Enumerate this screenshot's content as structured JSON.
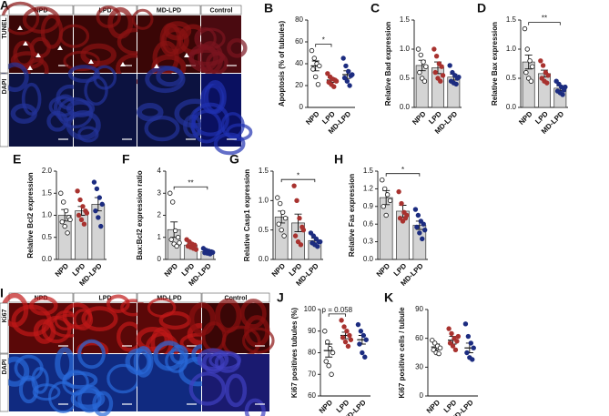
{
  "image_panels": [
    {
      "panel": "A",
      "columns": [
        "NPD",
        "LPD",
        "MD-LPD",
        "Control"
      ],
      "rows": [
        "TUNEL",
        "DAPI"
      ]
    },
    {
      "panel": "I",
      "columns": [
        "NPD",
        "LPD",
        "MD-LPD",
        "Control"
      ],
      "rows": [
        "Ki67",
        "DAPI"
      ]
    }
  ],
  "chart_data": [
    {
      "type": "dot",
      "panel": "B",
      "ylabel": "Apoptosis (% of tubules)",
      "categories": [
        "NPD",
        "LPD",
        "MD-LPD"
      ],
      "colors": [
        "#ffffff",
        "#a8322f",
        "#1c2c80"
      ],
      "values": [
        38,
        25,
        30
      ],
      "errors": [
        4.5,
        2,
        3.5
      ],
      "points": [
        [
          52,
          45,
          40,
          38,
          35,
          28,
          21
        ],
        [
          31,
          28,
          26,
          25,
          23,
          21,
          19,
          24
        ],
        [
          45,
          38,
          33,
          29,
          27,
          24,
          20,
          30
        ]
      ],
      "ylim": [
        0,
        80
      ],
      "yticks": [
        0,
        20,
        40,
        60,
        80
      ],
      "significance": [
        {
          "groups": [
            "NPD",
            "LPD"
          ],
          "label": "*"
        }
      ]
    },
    {
      "type": "bar",
      "panel": "C",
      "ylabel": "Relative Bad expression",
      "categories": [
        "NPD",
        "LPD",
        "MD-LPD"
      ],
      "colors": [
        "#ffffff",
        "#a8322f",
        "#1c2c80"
      ],
      "bar_color": "#d4d4d4",
      "values": [
        0.72,
        0.68,
        0.52
      ],
      "errors": [
        0.09,
        0.1,
        0.05
      ],
      "points": [
        [
          1.0,
          0.9,
          0.78,
          0.7,
          0.6,
          0.5,
          0.45
        ],
        [
          1.0,
          0.88,
          0.75,
          0.7,
          0.6,
          0.5,
          0.45,
          0.55
        ],
        [
          0.72,
          0.6,
          0.55,
          0.5,
          0.45,
          0.42,
          0.4,
          0.52
        ]
      ],
      "ylim": [
        0,
        1.5
      ],
      "yticks": [
        {
          "value": 0,
          "label": "0.0"
        },
        {
          "value": 0.5,
          "label": "0.5"
        },
        {
          "value": 1,
          "label": "1.0"
        },
        {
          "value": 1.5,
          "label": "1.5"
        }
      ],
      "significance": []
    },
    {
      "type": "bar",
      "panel": "D",
      "ylabel": "Relative Bax expression",
      "categories": [
        "NPD",
        "LPD",
        "MD-LPD"
      ],
      "colors": [
        "#ffffff",
        "#a8322f",
        "#1c2c80"
      ],
      "bar_color": "#d4d4d4",
      "values": [
        0.78,
        0.58,
        0.33
      ],
      "errors": [
        0.12,
        0.06,
        0.04
      ],
      "points": [
        [
          1.35,
          1.0,
          0.8,
          0.7,
          0.6,
          0.5,
          0.45
        ],
        [
          0.8,
          0.72,
          0.6,
          0.55,
          0.5,
          0.45,
          0.42
        ],
        [
          0.45,
          0.4,
          0.35,
          0.3,
          0.28,
          0.25,
          0.22,
          0.35
        ]
      ],
      "ylim": [
        0,
        1.5
      ],
      "yticks": [
        {
          "value": 0,
          "label": "0.0"
        },
        {
          "value": 0.5,
          "label": "0.5"
        },
        {
          "value": 1,
          "label": "1.0"
        },
        {
          "value": 1.5,
          "label": "1.5"
        }
      ],
      "significance": [
        {
          "groups": [
            "NPD",
            "MD-LPD"
          ],
          "label": "**"
        }
      ]
    },
    {
      "type": "bar",
      "panel": "E",
      "ylabel": "Relative Bcl2 expression",
      "categories": [
        "NPD",
        "LPD",
        "MD-LPD"
      ],
      "colors": [
        "#ffffff",
        "#a8322f",
        "#1c2c80"
      ],
      "bar_color": "#d4d4d4",
      "values": [
        1.0,
        1.1,
        1.25
      ],
      "errors": [
        0.13,
        0.1,
        0.15
      ],
      "points": [
        [
          1.5,
          1.3,
          1.1,
          0.95,
          0.85,
          0.75,
          0.6,
          0.9
        ],
        [
          1.55,
          1.35,
          1.2,
          1.1,
          1.0,
          0.9,
          0.8,
          1.05
        ],
        [
          1.75,
          1.6,
          1.4,
          1.25,
          1.1,
          0.95,
          0.75
        ]
      ],
      "ylim": [
        0,
        2
      ],
      "yticks": [
        {
          "value": 0,
          "label": "0.0"
        },
        {
          "value": 0.5,
          "label": "0.5"
        },
        {
          "value": 1,
          "label": "1.0"
        },
        {
          "value": 1.5,
          "label": "1.5"
        },
        {
          "value": 2,
          "label": "2.0"
        }
      ],
      "significance": []
    },
    {
      "type": "bar",
      "panel": "F",
      "ylabel": "Bax:Bcl2 expression ratio",
      "categories": [
        "NPD",
        "LPD",
        "MD-LPD"
      ],
      "colors": [
        "#ffffff",
        "#a8322f",
        "#1c2c80"
      ],
      "bar_color": "#d4d4d4",
      "values": [
        1.35,
        0.65,
        0.35
      ],
      "errors": [
        0.35,
        0.08,
        0.04
      ],
      "points": [
        [
          3.0,
          2.6,
          1.3,
          1.0,
          0.9,
          0.7,
          0.6,
          0.75
        ],
        [
          0.9,
          0.8,
          0.7,
          0.65,
          0.6,
          0.55,
          0.5,
          0.45
        ],
        [
          0.5,
          0.42,
          0.38,
          0.35,
          0.3,
          0.28,
          0.25,
          0.32
        ]
      ],
      "ylim": [
        0,
        4
      ],
      "yticks": [
        0,
        1,
        2,
        3,
        4
      ],
      "significance": [
        {
          "groups": [
            "NPD",
            "MD-LPD"
          ],
          "label": "**"
        }
      ]
    },
    {
      "type": "bar",
      "panel": "G",
      "ylabel": "Relative Casp1 expression",
      "categories": [
        "NPD",
        "LPD",
        "MD-LPD"
      ],
      "colors": [
        "#ffffff",
        "#a8322f",
        "#1c2c80"
      ],
      "bar_color": "#d4d4d4",
      "values": [
        0.72,
        0.62,
        0.32
      ],
      "errors": [
        0.1,
        0.15,
        0.04
      ],
      "points": [
        [
          1.05,
          0.95,
          0.8,
          0.7,
          0.6,
          0.5,
          0.4
        ],
        [
          1.25,
          1.0,
          0.7,
          0.55,
          0.4,
          0.3,
          0.25,
          0.5
        ],
        [
          0.45,
          0.4,
          0.35,
          0.3,
          0.28,
          0.25,
          0.22,
          0.3
        ]
      ],
      "ylim": [
        0,
        1.5
      ],
      "yticks": [
        {
          "value": 0,
          "label": "0.0"
        },
        {
          "value": 0.5,
          "label": "0.5"
        },
        {
          "value": 1,
          "label": "1.0"
        },
        {
          "value": 1.5,
          "label": "1.5"
        }
      ],
      "significance": [
        {
          "groups": [
            "NPD",
            "MD-LPD"
          ],
          "label": "*"
        }
      ]
    },
    {
      "type": "bar",
      "panel": "H",
      "ylabel": "Relative Fas expression",
      "categories": [
        "NPD",
        "LPD",
        "MD-LPD"
      ],
      "colors": [
        "#ffffff",
        "#a8322f",
        "#1c2c80"
      ],
      "bar_color": "#d4d4d4",
      "values": [
        1.05,
        0.82,
        0.58
      ],
      "errors": [
        0.12,
        0.1,
        0.07
      ],
      "points": [
        [
          1.35,
          1.2,
          1.1,
          1.0,
          0.9,
          0.75
        ],
        [
          1.15,
          0.95,
          0.8,
          0.75,
          0.7,
          0.65,
          0.7
        ],
        [
          0.85,
          0.75,
          0.65,
          0.6,
          0.55,
          0.45,
          0.35,
          0.5
        ]
      ],
      "ylim": [
        0,
        1.5
      ],
      "yticks": [
        {
          "value": 0,
          "label": "0.0"
        },
        {
          "value": 0.3,
          "label": "0.3"
        },
        {
          "value": 0.6,
          "label": "0.6"
        },
        {
          "value": 0.9,
          "label": "0.9"
        },
        {
          "value": 1.2,
          "label": "1.2"
        },
        {
          "value": 1.5,
          "label": "1.5"
        }
      ],
      "significance": [
        {
          "groups": [
            "NPD",
            "MD-LPD"
          ],
          "label": "*"
        }
      ]
    },
    {
      "type": "dot",
      "panel": "J",
      "ylabel": "Ki67 positives tubules (%)",
      "categories": [
        "NPD",
        "LPD",
        "MD-LPD"
      ],
      "colors": [
        "#ffffff",
        "#a8322f",
        "#1c2c80"
      ],
      "values": [
        81,
        88,
        86
      ],
      "errors": [
        3,
        1.5,
        2
      ],
      "points": [
        [
          90,
          85,
          82,
          80,
          76,
          74,
          70
        ],
        [
          95,
          92,
          90,
          88,
          87,
          85,
          83,
          86
        ],
        [
          93,
          90,
          88,
          86,
          84,
          80,
          78
        ]
      ],
      "ylim": [
        60,
        100
      ],
      "yticks": [
        60,
        70,
        80,
        90,
        100
      ],
      "significance": [
        {
          "groups": [
            "NPD",
            "LPD"
          ],
          "label": "p = 0.058"
        }
      ]
    },
    {
      "type": "dot",
      "panel": "K",
      "ylabel": "Ki67 positive cells / tubule",
      "categories": [
        "NPD",
        "LPD",
        "MD-LPD"
      ],
      "colors": [
        "#ffffff",
        "#a8322f",
        "#1c2c80"
      ],
      "values": [
        51,
        58,
        50
      ],
      "errors": [
        3,
        4,
        5
      ],
      "points": [
        [
          58,
          55,
          52,
          50,
          48,
          45,
          44
        ],
        [
          70,
          65,
          60,
          57,
          55,
          52,
          48,
          62
        ],
        [
          75,
          62,
          55,
          50,
          45,
          40,
          38
        ]
      ],
      "ylim": [
        0,
        90
      ],
      "yticks": [
        0,
        30,
        60,
        90
      ],
      "significance": []
    }
  ]
}
